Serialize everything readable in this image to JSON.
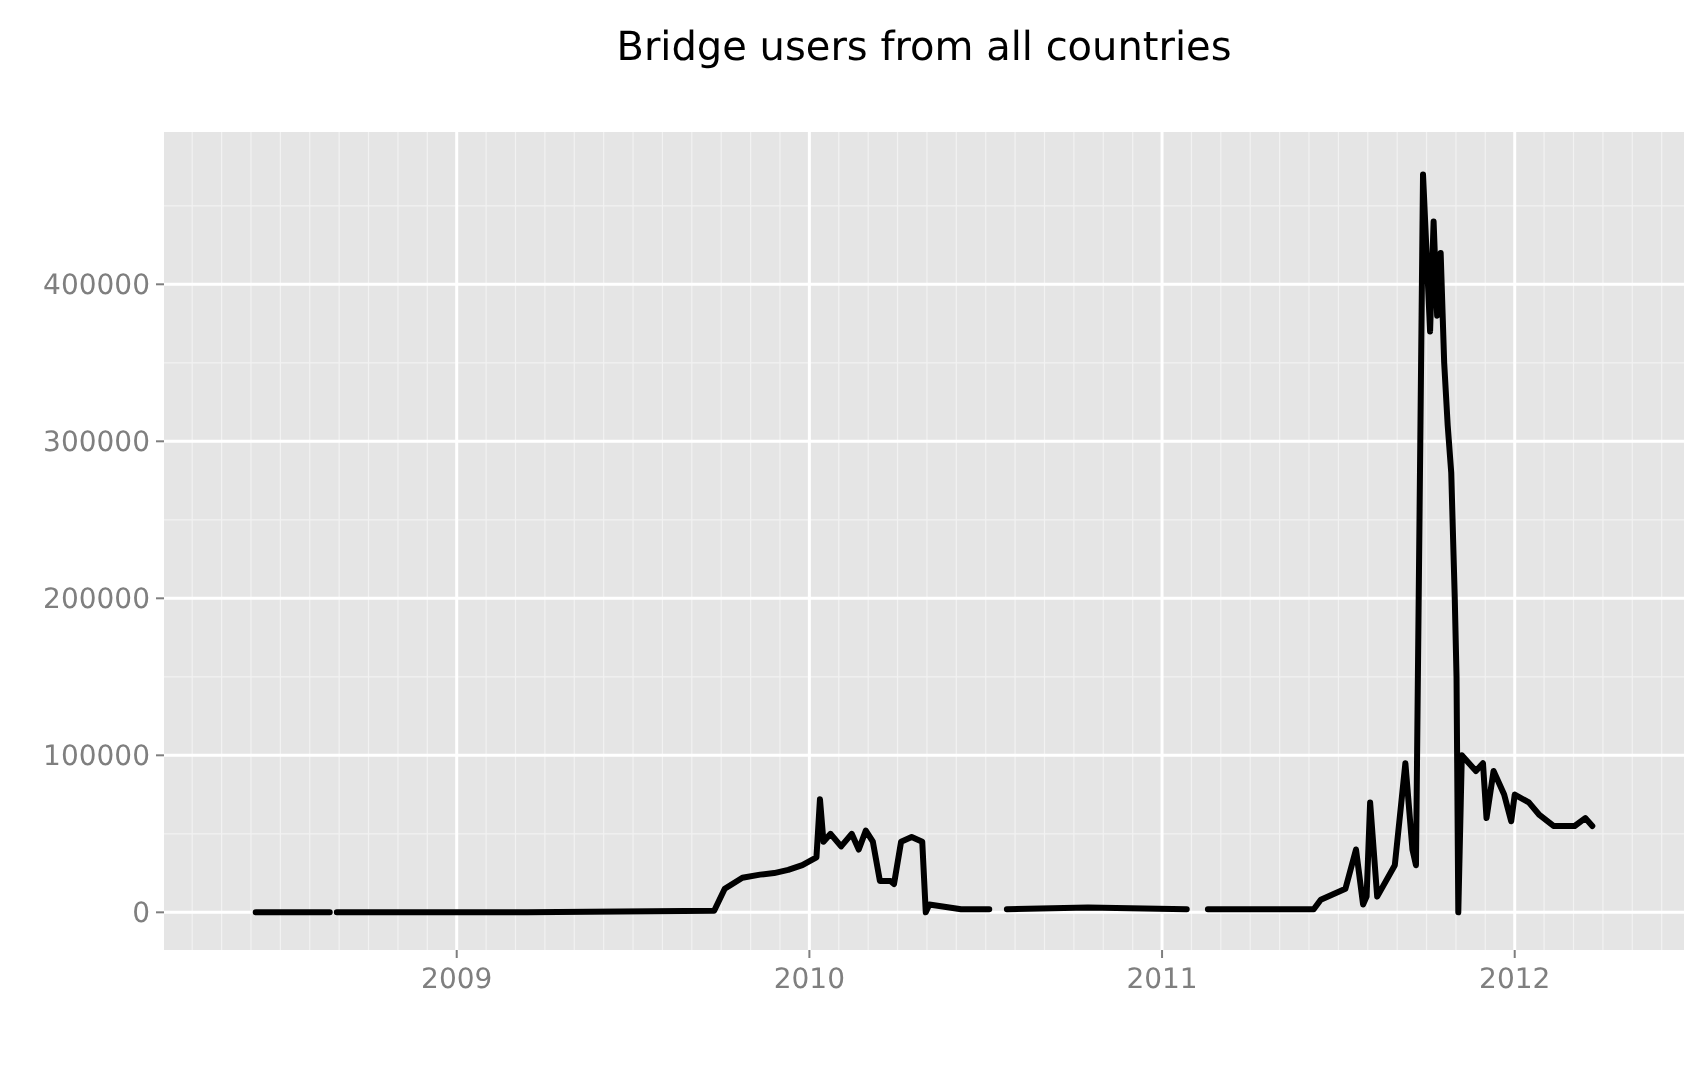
{
  "chart_data": {
    "type": "line",
    "title": "Bridge users from all countries",
    "xlim": [
      2008.17,
      2012.48
    ],
    "xticks": [
      2009,
      2010,
      2011,
      2012
    ],
    "ylim": [
      -24000,
      497000
    ],
    "yticks": [
      0,
      100000,
      200000,
      300000,
      400000
    ],
    "grid": true,
    "series": [
      {
        "color": "#000000",
        "x": [
          2008.43,
          2008.64,
          2008.65,
          2008.66,
          2009.2,
          2009.73,
          2009.76,
          2009.81,
          2009.86,
          2009.9,
          2009.94,
          2009.98,
          2010.02,
          2010.03,
          2010.04,
          2010.06,
          2010.09,
          2010.12,
          2010.14,
          2010.16,
          2010.18,
          2010.2,
          2010.23,
          2010.24,
          2010.26,
          2010.29,
          2010.32,
          2010.33,
          2010.34,
          2010.43,
          2010.51,
          2010.53,
          2010.56,
          2010.79,
          2011.07,
          2011.1,
          2011.13,
          2011.43,
          2011.45,
          2011.52,
          2011.55,
          2011.57,
          2011.58,
          2011.59,
          2011.61,
          2011.66,
          2011.69,
          2011.71,
          2011.72,
          2011.74,
          2011.76,
          2011.77,
          2011.78,
          2011.79,
          2011.8,
          2011.81,
          2011.82,
          2011.83,
          2011.835,
          2011.84,
          2011.85,
          2011.89,
          2011.91,
          2011.92,
          2011.94,
          2011.97,
          2011.99,
          2012.0,
          2012.04,
          2012.07,
          2012.11,
          2012.17,
          2012.2,
          2012.22
        ],
        "values": [
          0,
          0,
          null,
          0,
          0,
          1000,
          15000,
          22000,
          24000,
          25000,
          27000,
          30000,
          35000,
          72000,
          45000,
          50000,
          42000,
          50000,
          40000,
          52000,
          45000,
          20000,
          20000,
          18000,
          45000,
          48000,
          45000,
          0,
          5000,
          2000,
          2000,
          null,
          2000,
          3000,
          2000,
          null,
          2000,
          2000,
          8000,
          15000,
          40000,
          5000,
          10000,
          70000,
          10000,
          30000,
          95000,
          40000,
          30000,
          470000,
          370000,
          440000,
          380000,
          420000,
          350000,
          310000,
          280000,
          200000,
          150000,
          0,
          100000,
          90000,
          95000,
          60000,
          90000,
          75000,
          58000,
          75000,
          70000,
          62000,
          55000,
          55000,
          60000,
          55000
        ]
      }
    ]
  }
}
